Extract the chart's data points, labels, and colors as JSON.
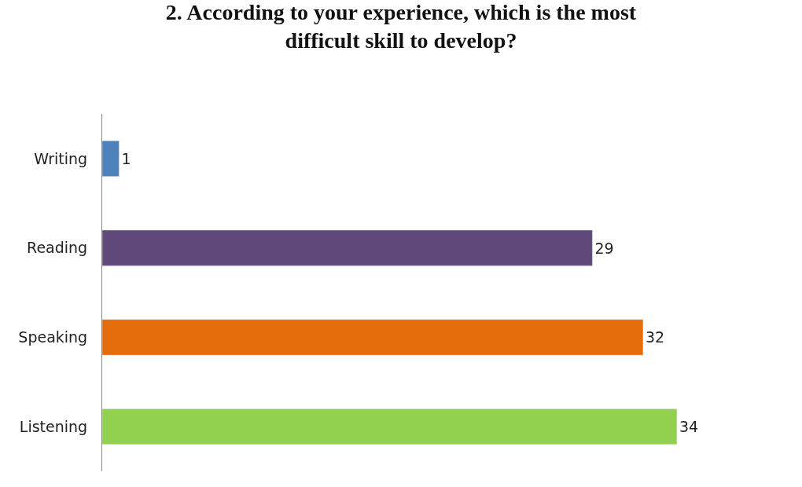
{
  "chart_data": {
    "type": "bar",
    "orientation": "horizontal",
    "title": "2. According to your experience, which is the most difficult skill to develop?",
    "categories": [
      "Writing",
      "Reading",
      "Speaking",
      "Listening"
    ],
    "values": [
      1,
      29,
      32,
      34
    ],
    "colors": [
      "#4f81bd",
      "#604a7b",
      "#e46c0a",
      "#92d050"
    ],
    "data_labels": true
  }
}
